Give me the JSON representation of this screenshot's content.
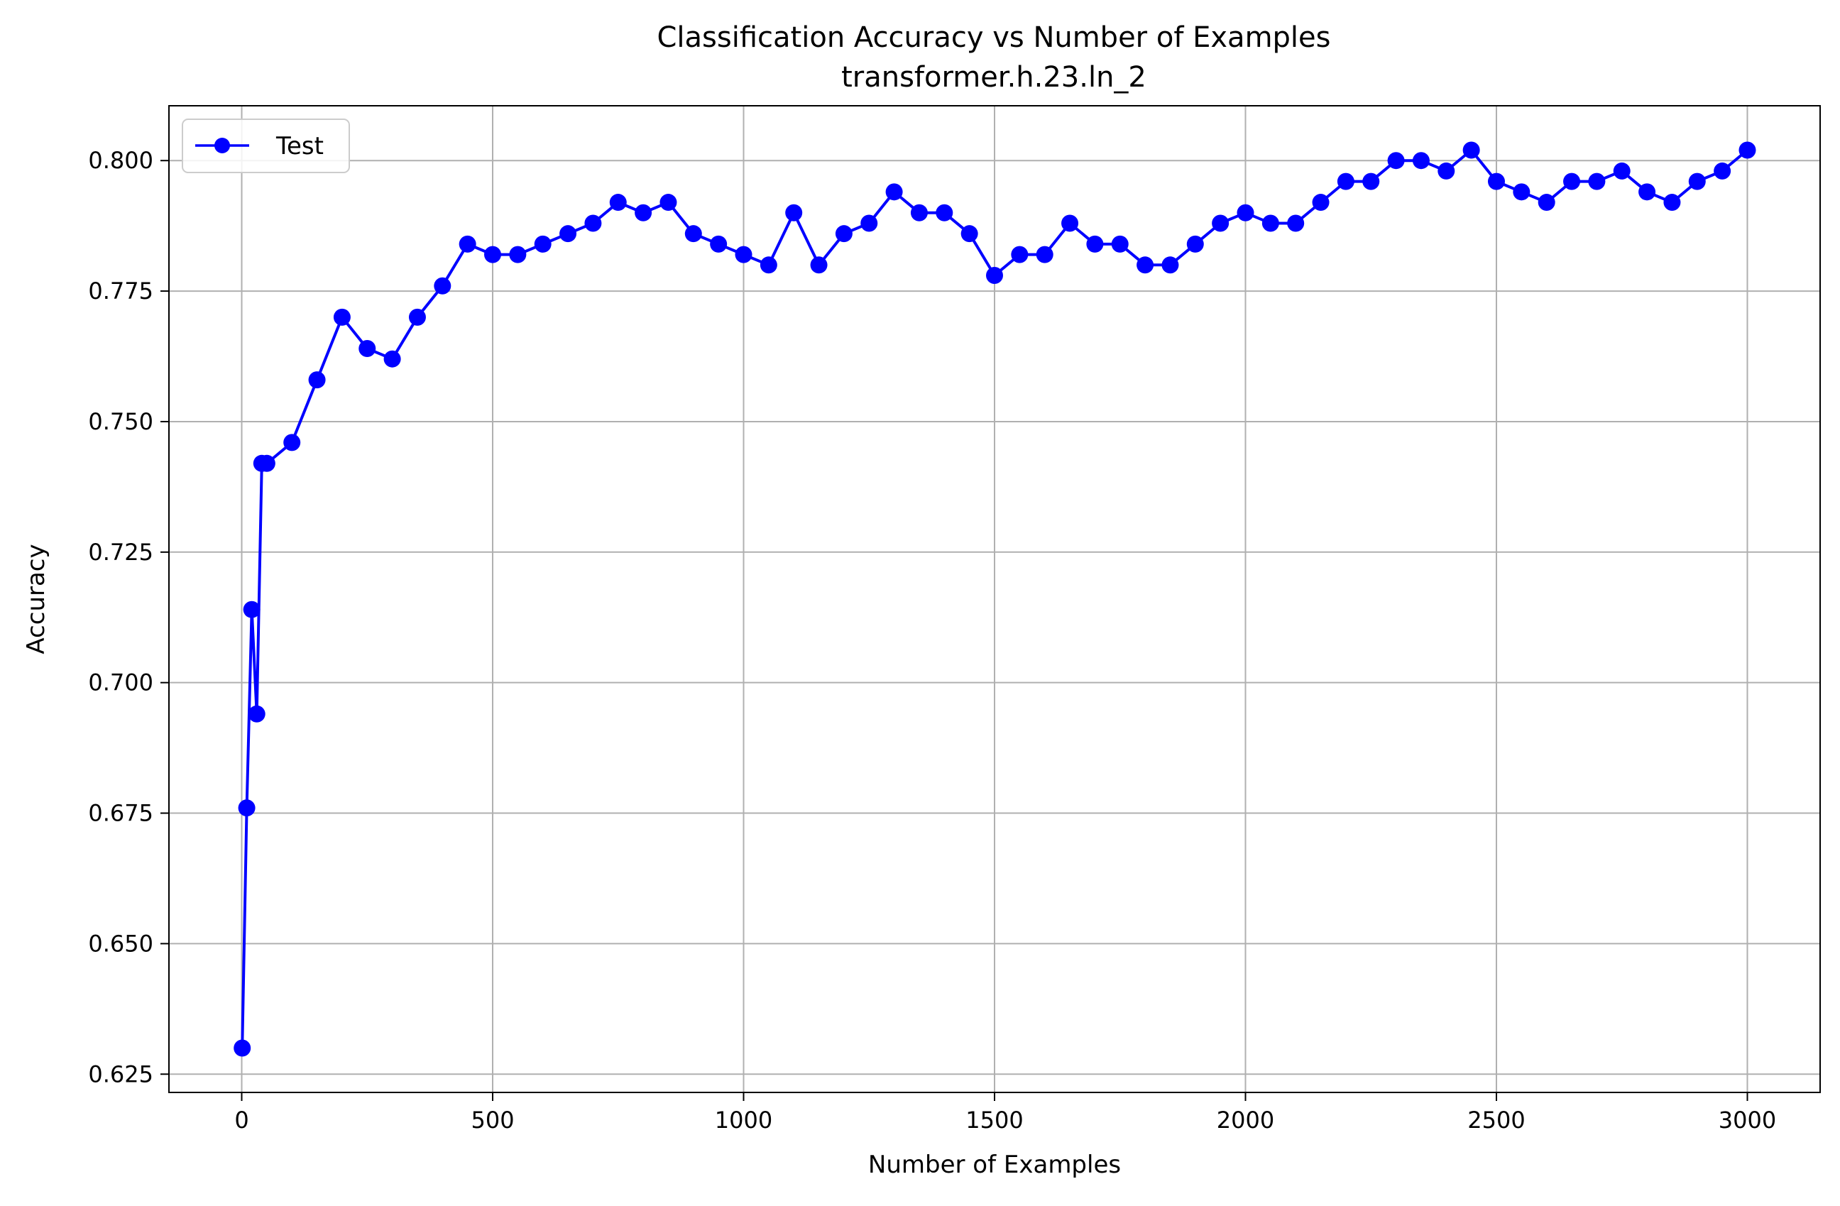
{
  "chart_data": {
    "type": "line",
    "title": "Classification Accuracy vs Number of Examples",
    "subtitle": "transformer.h.23.ln_2",
    "xlabel": "Number of Examples",
    "ylabel": "Accuracy",
    "xlim": [
      -145,
      3145
    ],
    "ylim": [
      0.6215,
      0.8105
    ],
    "xticks": [
      0,
      500,
      1000,
      1500,
      2000,
      2500,
      3000
    ],
    "xtick_labels": [
      "0",
      "500",
      "1000",
      "1500",
      "2000",
      "2500",
      "3000"
    ],
    "yticks": [
      0.625,
      0.65,
      0.675,
      0.7,
      0.725,
      0.75,
      0.775,
      0.8
    ],
    "ytick_labels": [
      "0.625",
      "0.650",
      "0.675",
      "0.700",
      "0.725",
      "0.750",
      "0.775",
      "0.800"
    ],
    "grid": true,
    "legend_position": "top-left",
    "series": [
      {
        "name": "Test",
        "color": "#0000ff",
        "marker": "circle",
        "x": [
          1,
          10,
          20,
          30,
          40,
          50,
          100,
          150,
          200,
          250,
          300,
          350,
          400,
          450,
          500,
          550,
          600,
          650,
          700,
          750,
          800,
          850,
          900,
          950,
          1000,
          1050,
          1100,
          1150,
          1200,
          1250,
          1300,
          1350,
          1400,
          1450,
          1500,
          1550,
          1600,
          1650,
          1700,
          1750,
          1800,
          1850,
          1900,
          1950,
          2000,
          2050,
          2100,
          2150,
          2200,
          2250,
          2300,
          2350,
          2400,
          2450,
          2500,
          2550,
          2600,
          2650,
          2700,
          2750,
          2800,
          2850,
          2900,
          2950,
          3000
        ],
        "y": [
          0.63,
          0.676,
          0.714,
          0.694,
          0.742,
          0.742,
          0.746,
          0.758,
          0.77,
          0.764,
          0.762,
          0.77,
          0.776,
          0.784,
          0.782,
          0.782,
          0.784,
          0.786,
          0.788,
          0.792,
          0.79,
          0.792,
          0.786,
          0.784,
          0.782,
          0.78,
          0.79,
          0.78,
          0.786,
          0.788,
          0.794,
          0.79,
          0.79,
          0.786,
          0.778,
          0.782,
          0.782,
          0.788,
          0.784,
          0.784,
          0.78,
          0.78,
          0.784,
          0.788,
          0.79,
          0.788,
          0.788,
          0.792,
          0.796,
          0.796,
          0.8,
          0.8,
          0.798,
          0.802,
          0.796,
          0.794,
          0.792,
          0.796,
          0.796,
          0.798,
          0.794,
          0.792,
          0.796,
          0.798,
          0.802
        ]
      }
    ]
  }
}
